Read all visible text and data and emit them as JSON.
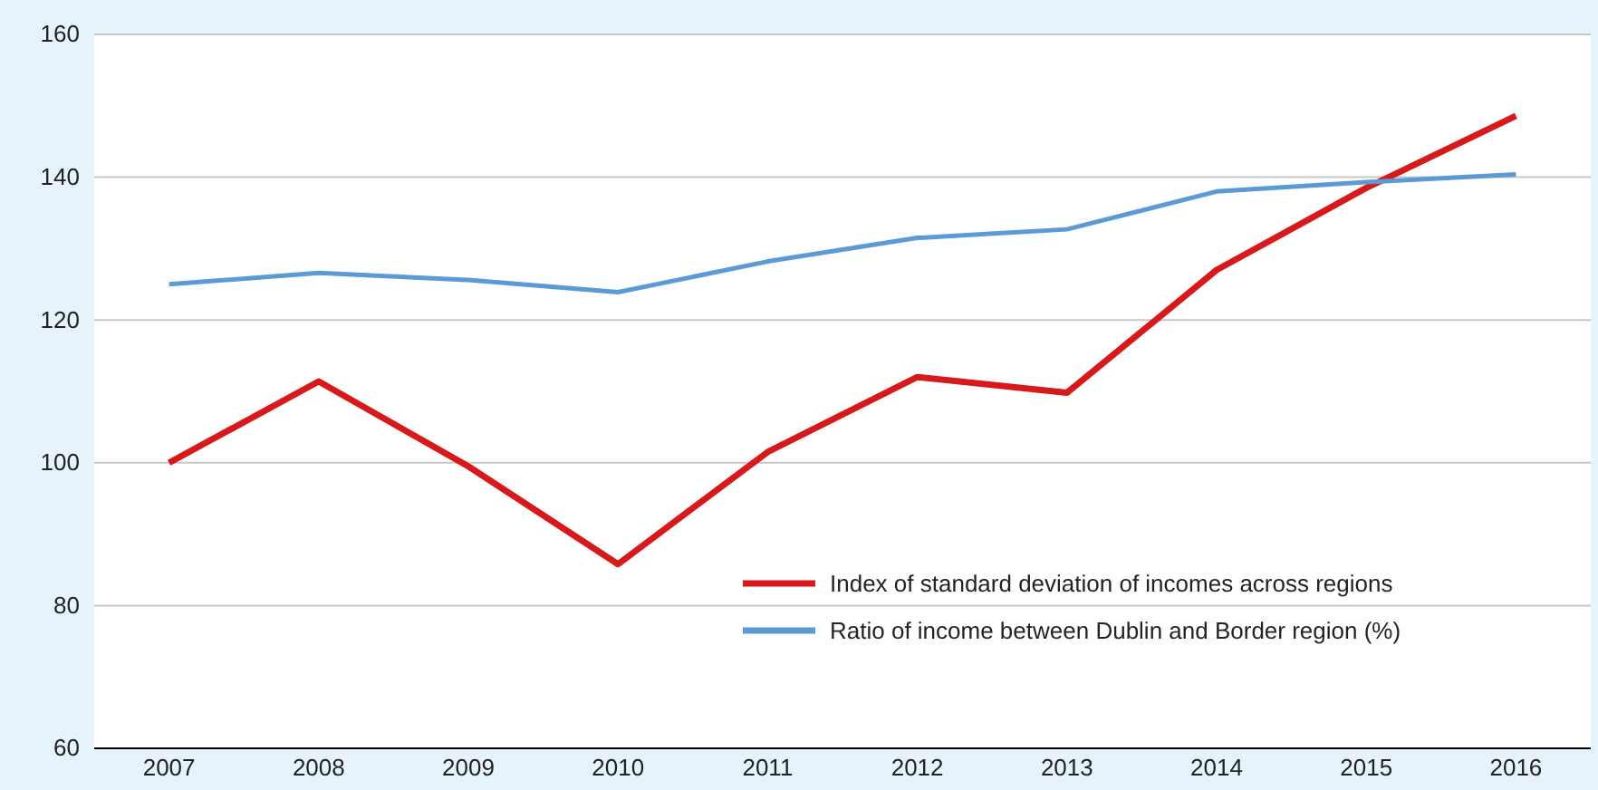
{
  "chart_data": {
    "type": "line",
    "categories": [
      "2007",
      "2008",
      "2009",
      "2010",
      "2011",
      "2012",
      "2013",
      "2014",
      "2015",
      "2016"
    ],
    "series": [
      {
        "name": "Index of standard deviation of incomes across regions",
        "color": "#d7191c",
        "values": [
          100,
          111.4,
          99.5,
          85.8,
          101.5,
          112,
          109.8,
          127,
          138.5,
          148.6
        ]
      },
      {
        "name": "Ratio of income between Dublin and Border region (%)",
        "color": "#5b9bd5",
        "values": [
          125,
          126.6,
          125.6,
          123.9,
          128.2,
          131.5,
          132.7,
          138,
          139.3,
          140.4
        ]
      }
    ],
    "ylim": [
      60,
      160
    ],
    "yticks": [
      60,
      80,
      100,
      120,
      140,
      160
    ],
    "grid": "y",
    "legend": "bottom right",
    "marker": "none",
    "line_style": "solid"
  }
}
